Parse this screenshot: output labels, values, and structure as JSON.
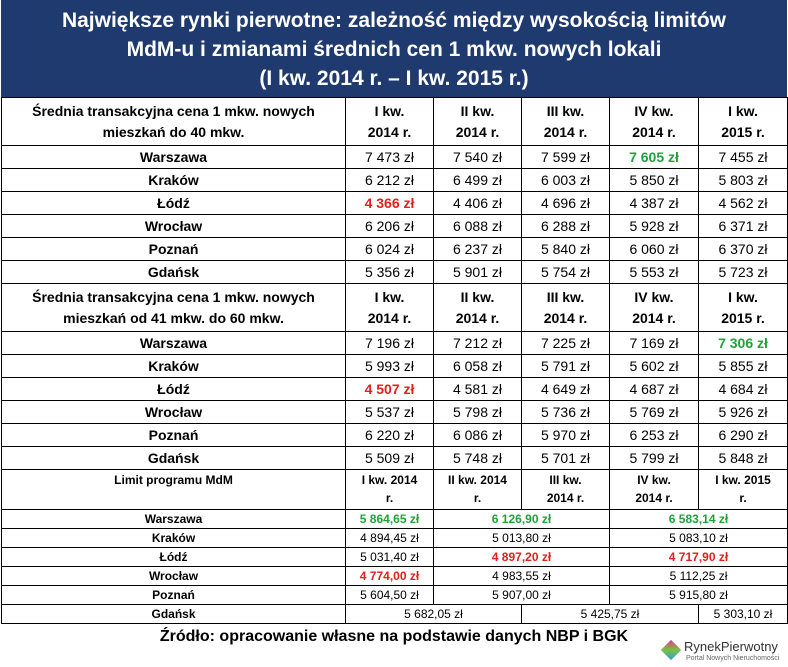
{
  "title": [
    "Największe rynki pierwotne: zależność między wysokością limitów",
    "MdM-u i zmianami średnich cen 1 mkw. nowych lokali",
    "(I kw. 2014 r. – I kw. 2015 r.)"
  ],
  "colors": {
    "green": "#1fa33a",
    "red": "#e0201c"
  },
  "sections": [
    {
      "header": "Średnia transakcyjna cena 1 mkw. nowych mieszkań do 40 mkw.",
      "columns": [
        "I kw. 2014 r.",
        "II kw. 2014 r.",
        "III kw. 2014 r.",
        "IV kw. 2014 r.",
        "I kw. 2015 r."
      ],
      "rows": [
        {
          "city": "Warszawa",
          "cells": [
            "7 473 zł",
            "7 540 zł",
            "7 599 zł",
            "7 605 zł",
            "7 455 zł"
          ]
        },
        {
          "city": "Kraków",
          "cells": [
            "6 212 zł",
            "6 499 zł",
            "6 003 zł",
            "5 850 zł",
            "5 803 zł"
          ]
        },
        {
          "city": "Łódź",
          "cells": [
            "4 366 zł",
            "4 406 zł",
            "4 696 zł",
            "4 387 zł",
            "4 562 zł"
          ]
        },
        {
          "city": "Wrocław",
          "cells": [
            "6 206 zł",
            "6 088 zł",
            "6 288 zł",
            "5 928 zł",
            "6 371 zł"
          ]
        },
        {
          "city": "Poznań",
          "cells": [
            "6 024 zł",
            "6 237 zł",
            "5 840 zł",
            "6 060 zł",
            "6 370 zł"
          ]
        },
        {
          "city": "Gdańsk",
          "cells": [
            "5 356 zł",
            "5 901 zł",
            "5 754 zł",
            "5 553 zł",
            "5 723 zł"
          ]
        }
      ],
      "highlights": {
        "green": [
          [
            0,
            3
          ]
        ],
        "red": [
          [
            2,
            0
          ]
        ]
      }
    },
    {
      "header": "Średnia transakcyjna cena 1 mkw. nowych mieszkań od 41 mkw. do 60 mkw.",
      "columns": [
        "I kw. 2014 r.",
        "II kw. 2014 r.",
        "III kw. 2014 r.",
        "IV kw. 2014 r.",
        "I kw. 2015 r."
      ],
      "rows": [
        {
          "city": "Warszawa",
          "cells": [
            "7 196 zł",
            "7 212 zł",
            "7 225 zł",
            "7 169 zł",
            "7 306 zł"
          ]
        },
        {
          "city": "Kraków",
          "cells": [
            "5 993 zł",
            "6 058 zł",
            "5 791 zł",
            "5 602 zł",
            "5 855 zł"
          ]
        },
        {
          "city": "Łódź",
          "cells": [
            "4 507 zł",
            "4 581 zł",
            "4 649 zł",
            "4 687 zł",
            "4 684 zł"
          ]
        },
        {
          "city": "Wrocław",
          "cells": [
            "5 537 zł",
            "5 798 zł",
            "5 736 zł",
            "5 769 zł",
            "5 926 zł"
          ]
        },
        {
          "city": "Poznań",
          "cells": [
            "6 220 zł",
            "6 086 zł",
            "5 970 zł",
            "6 253 zł",
            "6 290 zł"
          ]
        },
        {
          "city": "Gdańsk",
          "cells": [
            "5 509 zł",
            "5 748 zł",
            "5 701 zł",
            "5 799 zł",
            "5 848 zł"
          ]
        }
      ],
      "highlights": {
        "green": [
          [
            0,
            4
          ]
        ],
        "red": [
          [
            2,
            0
          ]
        ]
      }
    },
    {
      "header": "Limit programu MdM",
      "columns": [
        "I kw. 2014 r.",
        "II kw. 2014 r.",
        "III kw. 2014 r.",
        "IV kw. 2014 r.",
        "I kw. 2015 r."
      ],
      "rows": [
        {
          "city": "Warszawa",
          "cells": [
            "5 864,65 zł",
            "6 126,90 zł",
            null,
            "6 583,14 zł",
            null
          ]
        },
        {
          "city": "Kraków",
          "cells": [
            "4 894,45 zł",
            "5 013,80 zł",
            null,
            "5 083,10 zł",
            null
          ]
        },
        {
          "city": "Łódź",
          "cells": [
            "5 031,40 zł",
            "4 897,20 zł",
            null,
            "4 717,90 zł",
            null
          ]
        },
        {
          "city": "Wrocław",
          "cells": [
            "4 774,00 zł",
            "4 983,55 zł",
            null,
            "5 112,25 zł",
            null
          ]
        },
        {
          "city": "Poznań",
          "cells": [
            "5 604,50 zł",
            "5 907,00 zł",
            null,
            "5 915,80 zł",
            null
          ]
        },
        {
          "city": "Gdańsk",
          "cells": [
            "5 682,05 zł",
            null,
            "5 425,75 zł",
            null,
            "5 303,10 zł"
          ]
        }
      ],
      "highlights": {
        "green": [
          [
            0,
            0
          ],
          [
            0,
            1
          ],
          [
            0,
            3
          ]
        ],
        "red": [
          [
            2,
            1
          ],
          [
            2,
            3
          ],
          [
            3,
            0
          ]
        ]
      }
    }
  ],
  "source": "Źródło: opracowanie własne na podstawie danych NBP i BGK",
  "logo": {
    "name": "RynekPierwotny",
    "tagline": "Portal Nowych Nieruchomości"
  }
}
